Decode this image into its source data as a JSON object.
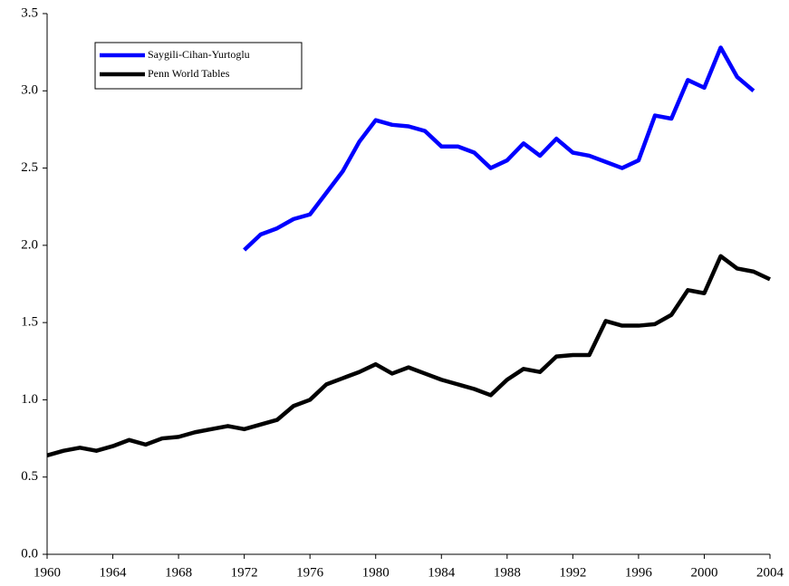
{
  "chart_data": {
    "type": "line",
    "x": [
      1960,
      1961,
      1962,
      1963,
      1964,
      1965,
      1966,
      1967,
      1968,
      1969,
      1970,
      1971,
      1972,
      1973,
      1974,
      1975,
      1976,
      1977,
      1978,
      1979,
      1980,
      1981,
      1982,
      1983,
      1984,
      1985,
      1986,
      1987,
      1988,
      1989,
      1990,
      1991,
      1992,
      1993,
      1994,
      1995,
      1996,
      1997,
      1998,
      1999,
      2000,
      2001,
      2002,
      2003,
      2004
    ],
    "series": [
      {
        "name": "Saygili-Cihan-Yurtoglu",
        "color": "#0000ff",
        "values": [
          null,
          null,
          null,
          null,
          null,
          null,
          null,
          null,
          null,
          null,
          null,
          null,
          1.97,
          2.07,
          2.11,
          2.17,
          2.2,
          2.34,
          2.48,
          2.67,
          2.81,
          2.78,
          2.77,
          2.74,
          2.64,
          2.64,
          2.6,
          2.5,
          2.55,
          2.66,
          2.58,
          2.69,
          2.6,
          2.58,
          2.54,
          2.5,
          2.55,
          2.84,
          2.82,
          3.07,
          3.02,
          3.28,
          3.09,
          3.0,
          null
        ]
      },
      {
        "name": "Penn World Tables",
        "color": "#000000",
        "values": [
          0.64,
          0.67,
          0.69,
          0.67,
          0.7,
          0.74,
          0.71,
          0.75,
          0.76,
          0.79,
          0.81,
          0.83,
          0.81,
          0.84,
          0.87,
          0.96,
          1.0,
          1.1,
          1.14,
          1.18,
          1.23,
          1.17,
          1.21,
          1.17,
          1.13,
          1.1,
          1.07,
          1.03,
          1.13,
          1.2,
          1.18,
          1.28,
          1.29,
          1.29,
          1.51,
          1.48,
          1.48,
          1.49,
          1.55,
          1.71,
          1.69,
          1.93,
          1.85,
          1.83,
          1.78
        ]
      }
    ],
    "xlim": [
      1960,
      2004
    ],
    "xticks": [
      1960,
      1964,
      1968,
      1972,
      1976,
      1980,
      1984,
      1988,
      1992,
      1996,
      2000,
      2004
    ],
    "ylim": [
      0,
      3.5
    ],
    "yticks": [
      {
        "value": 0,
        "label": "0.0"
      },
      0.5,
      {
        "value": 1,
        "label": "1.0"
      },
      1.5,
      {
        "value": 2,
        "label": "2.0"
      },
      2.5,
      {
        "value": 3,
        "label": "3.0"
      },
      3.5
    ],
    "legend": "upper left"
  }
}
